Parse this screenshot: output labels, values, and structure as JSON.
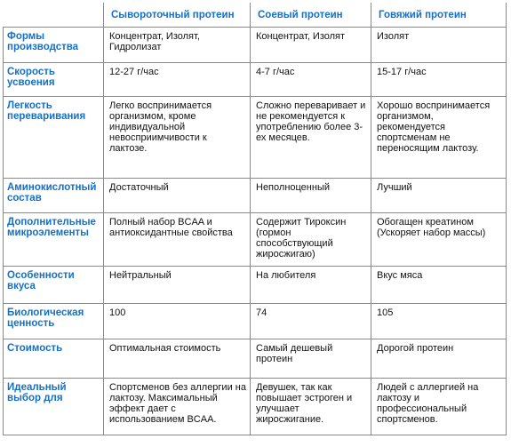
{
  "header": {
    "corner": "",
    "columns": [
      "Сывороточный протеин",
      "Соевый протеин",
      "Говяжий протеин"
    ]
  },
  "rows": [
    {
      "feature": "Формы производства",
      "values": [
        "Концентрат, Изолят, Гидролизат",
        "Концентрат, Изолят",
        "Изолят"
      ]
    },
    {
      "feature": "Скорость усвоения",
      "values": [
        "12-27 г/час",
        "4-7 г/час",
        "15-17 г/час"
      ]
    },
    {
      "feature": "Легкость переваривания",
      "values": [
        "Легко воспринимается организмом, кроме индивидуальной невосприимчивости к лактозе.",
        "Сложно переваривает и не рекомендуется к употреблению более 3-ех месяцев.",
        "Хорошо воспринимается организмом, рекомендуется спортсменам не переносящим лактозу."
      ]
    },
    {
      "feature": "Аминокислотный состав",
      "values": [
        "Достаточный",
        "Неполноценный",
        "Лучший"
      ]
    },
    {
      "feature": "Дополнительные микроэлементы",
      "values": [
        "Полный набор BCAA и антиоксидантные свойства",
        "Содержит Тироксин (гормон способствующий жиросжигаю)",
        "Обогащен креатином (Ускоряет набор массы)"
      ]
    },
    {
      "feature": "Особенности вкуса",
      "values": [
        "Нейтральный",
        "На любителя",
        "Вкус мяса"
      ]
    },
    {
      "feature": "Биологическая ценность",
      "values": [
        "100",
        "74",
        "105"
      ]
    },
    {
      "feature": "Стоимость",
      "values": [
        "Оптимальная стоимость",
        "Самый дешевый протеин",
        "Дорогой протеин"
      ]
    },
    {
      "feature": "Идеальный выбор для",
      "values": [
        "Спортсменов без аллергии на лактозу. Максимальный эффект дает с использованием BCAA.",
        "Девушек, так как повышает эстроген и улучшает жиросжигание.",
        "Людей с аллергией на лактозу и профессиональный спортсменов."
      ]
    }
  ]
}
